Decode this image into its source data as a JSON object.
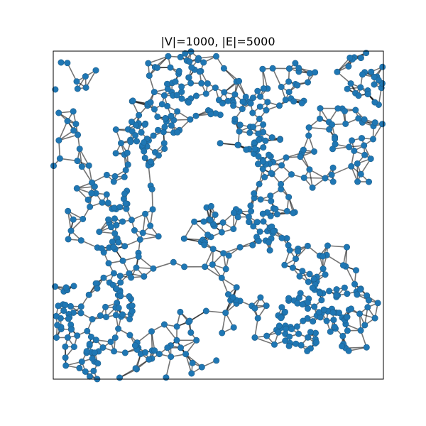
{
  "title": "|V|=1000, |E|=5000",
  "colors": {
    "node": "#1f77b4",
    "edge": "#000000",
    "frame": "#000000",
    "background": "#ffffff"
  },
  "graph": {
    "type": "random geometric graph",
    "vertex_count": 1000,
    "edge_count": 5000,
    "axes_visible": false,
    "frame_visible": true
  }
}
